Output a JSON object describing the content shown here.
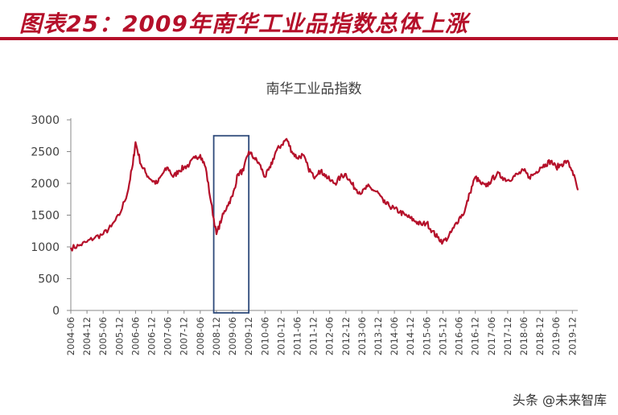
{
  "header": {
    "title": "图表25：2009年南华工业品指数总体上涨"
  },
  "watermark": "头条 @未来智库",
  "colors": {
    "line": "#b5102a",
    "highlight": "#2e4a7a",
    "title": "#b5102a"
  },
  "chart_data": {
    "type": "line",
    "title": "南华工业品指数",
    "ylim": [
      0,
      3000
    ],
    "yticks": [
      0,
      500,
      1000,
      1500,
      2000,
      2500,
      3000
    ],
    "xticks": [
      "2004-06",
      "2004-12",
      "2005-06",
      "2005-12",
      "2006-06",
      "2006-12",
      "2007-06",
      "2007-12",
      "2008-06",
      "2008-12",
      "2009-06",
      "2009-12",
      "2010-06",
      "2010-12",
      "2011-06",
      "2011-12",
      "2012-06",
      "2012-12",
      "2013-06",
      "2013-12",
      "2014-06",
      "2014-12",
      "2015-06",
      "2015-12",
      "2016-06",
      "2016-12",
      "2017-06",
      "2017-12",
      "2018-06",
      "2018-12",
      "2019-06",
      "2019-12"
    ],
    "highlight_range": [
      "2008-11",
      "2009-12"
    ],
    "series": [
      {
        "x": [
          "2004-06",
          "2004-09",
          "2004-12",
          "2005-03",
          "2005-06",
          "2005-09",
          "2005-12",
          "2006-03",
          "2006-05",
          "2006-06",
          "2006-08",
          "2006-10",
          "2006-12",
          "2007-02",
          "2007-04",
          "2007-06",
          "2007-08",
          "2007-10",
          "2007-12",
          "2008-02",
          "2008-04",
          "2008-06",
          "2008-08",
          "2008-10",
          "2008-12",
          "2009-02",
          "2009-04",
          "2009-06",
          "2009-08",
          "2009-10",
          "2009-12",
          "2010-02",
          "2010-04",
          "2010-06",
          "2010-08",
          "2010-10",
          "2010-12",
          "2011-02",
          "2011-04",
          "2011-06",
          "2011-08",
          "2011-10",
          "2011-12",
          "2012-02",
          "2012-04",
          "2012-06",
          "2012-08",
          "2012-10",
          "2012-12",
          "2013-02",
          "2013-04",
          "2013-06",
          "2013-08",
          "2013-10",
          "2013-12",
          "2014-02",
          "2014-04",
          "2014-06",
          "2014-08",
          "2014-10",
          "2014-12",
          "2015-02",
          "2015-04",
          "2015-06",
          "2015-08",
          "2015-10",
          "2015-12",
          "2016-02",
          "2016-04",
          "2016-06",
          "2016-08",
          "2016-10",
          "2016-12",
          "2017-02",
          "2017-04",
          "2017-06",
          "2017-08",
          "2017-10",
          "2017-12",
          "2018-02",
          "2018-04",
          "2018-06",
          "2018-08",
          "2018-10",
          "2018-12",
          "2019-02",
          "2019-04",
          "2019-06",
          "2019-08",
          "2019-10",
          "2019-12",
          "2020-02"
        ],
        "values": [
          980,
          1020,
          1080,
          1150,
          1200,
          1320,
          1500,
          1850,
          2300,
          2650,
          2300,
          2150,
          2050,
          2000,
          2150,
          2250,
          2100,
          2200,
          2250,
          2300,
          2400,
          2450,
          2250,
          1700,
          1200,
          1450,
          1650,
          1800,
          2150,
          2200,
          2500,
          2400,
          2300,
          2100,
          2250,
          2500,
          2600,
          2700,
          2500,
          2400,
          2450,
          2250,
          2100,
          2200,
          2150,
          2050,
          2000,
          2100,
          2150,
          2000,
          1900,
          1850,
          1950,
          1900,
          1850,
          1700,
          1650,
          1600,
          1550,
          1500,
          1450,
          1400,
          1350,
          1380,
          1250,
          1150,
          1080,
          1150,
          1300,
          1450,
          1550,
          1850,
          2100,
          2000,
          1950,
          2050,
          2150,
          2100,
          2050,
          2100,
          2150,
          2200,
          2100,
          2150,
          2250,
          2300,
          2350,
          2250,
          2300,
          2350,
          2200,
          1900
        ]
      }
    ]
  }
}
